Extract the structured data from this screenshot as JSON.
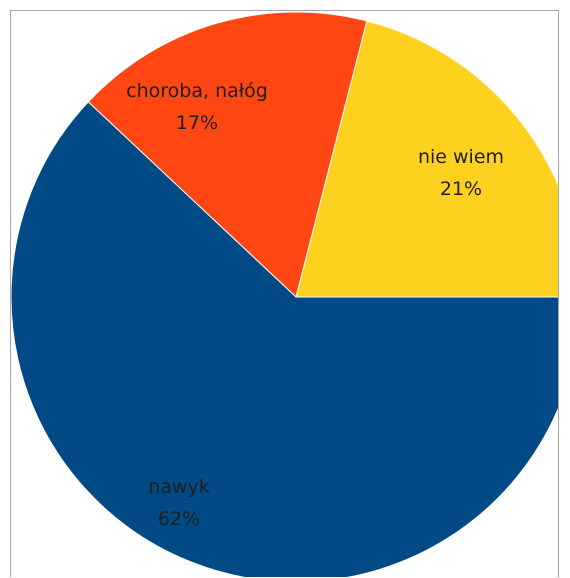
{
  "chart_data": {
    "type": "pie",
    "title": "",
    "slices": [
      {
        "label": "nie wiem",
        "value": 21,
        "value_label": "21%",
        "color": "#FFD11F"
      },
      {
        "label": "choroba, nałóg",
        "value": 17,
        "value_label": "17%",
        "color": "#FF4613"
      },
      {
        "label": "nawyk",
        "value": 62,
        "value_label": "62%",
        "color": "#024A86"
      }
    ],
    "start_angle": "3 o'clock",
    "direction": "counter-clockwise",
    "legend": "none",
    "data_labels": "inside"
  }
}
